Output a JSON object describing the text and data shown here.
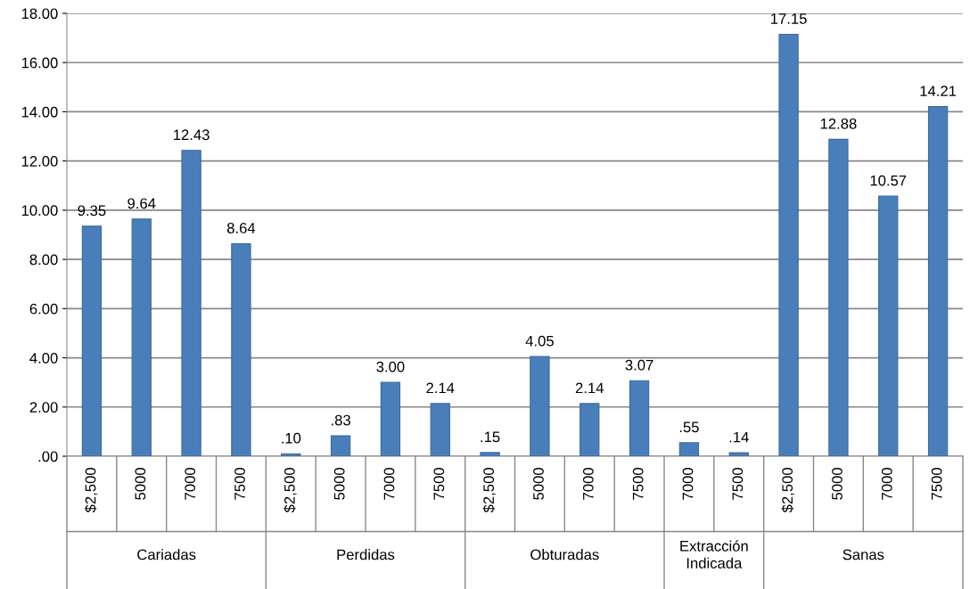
{
  "chart_data": {
    "type": "bar",
    "categories": [
      "$2,500",
      "5000",
      "7000",
      "7500",
      "$2,500",
      "5000",
      "7000",
      "7500",
      "$2,500",
      "5000",
      "7000",
      "7500",
      "7000",
      "7500",
      "$2,500",
      "5000",
      "7000",
      "7500"
    ],
    "values": [
      9.35,
      9.64,
      12.43,
      8.64,
      0.1,
      0.83,
      3.0,
      2.14,
      0.15,
      4.05,
      2.14,
      3.07,
      0.55,
      0.14,
      17.15,
      12.88,
      10.57,
      14.21
    ],
    "value_labels": [
      "9.35",
      "9.64",
      "12.43",
      "8.64",
      ".10",
      ".83",
      "3.00",
      "2.14",
      ".15",
      "4.05",
      "2.14",
      "3.07",
      ".55",
      ".14",
      "17.15",
      "12.88",
      "10.57",
      "14.21"
    ],
    "annotations": [
      "Cariadas",
      "Perdidas",
      "Obturadas",
      "Extracción\nIndicada",
      "Sanas"
    ],
    "color": "#4a7ebb",
    "ylim": [
      0,
      18
    ],
    "yticks": [
      {
        "value": 0,
        "label": ".00"
      },
      {
        "value": 2,
        "label": "2.00"
      },
      {
        "value": 4,
        "label": "4.00"
      },
      {
        "value": 6,
        "label": "6.00"
      },
      {
        "value": 8,
        "label": "8.00"
      },
      {
        "value": 10,
        "label": "10.00"
      },
      {
        "value": 12,
        "label": "12.00"
      },
      {
        "value": 14,
        "label": "14.00"
      },
      {
        "value": 16,
        "label": "16.00"
      },
      {
        "value": 18,
        "label": "18.00"
      }
    ],
    "grid": "y"
  }
}
